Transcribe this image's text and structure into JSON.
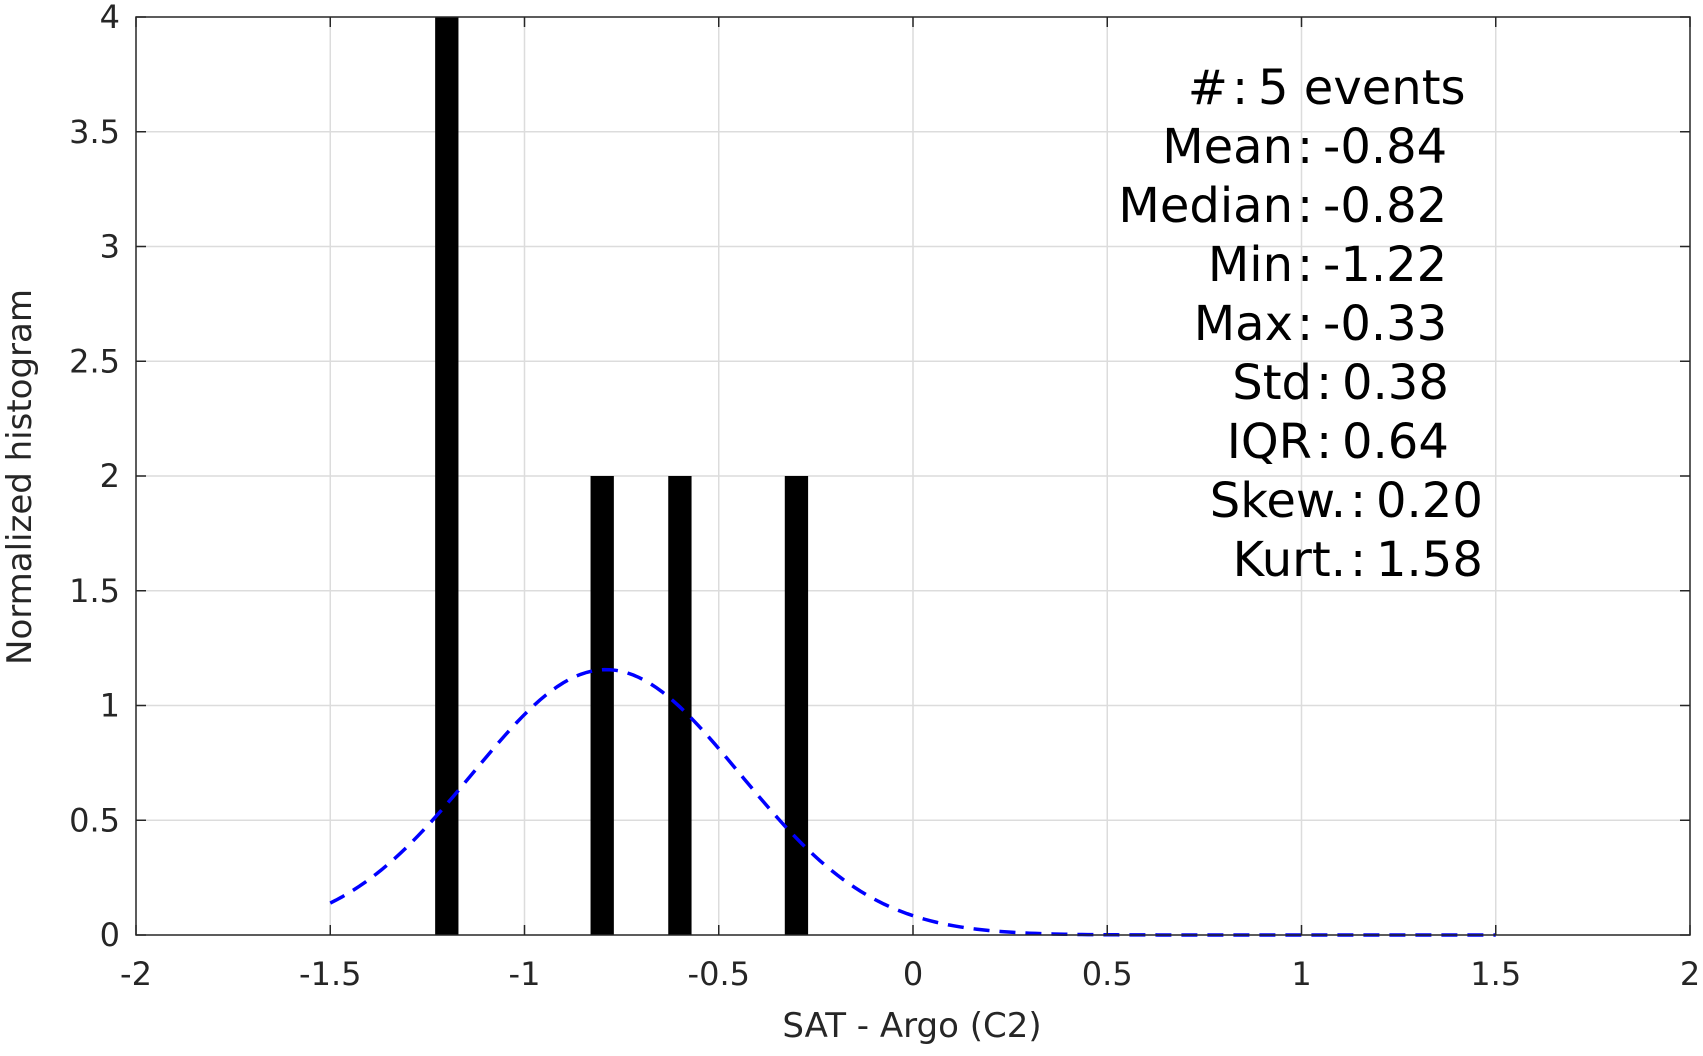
{
  "chart_data": {
    "type": "bar",
    "xlabel": "SAT - Argo (C2)",
    "ylabel": "Normalized histogram",
    "xlim": [
      -2,
      2
    ],
    "ylim": [
      0,
      4
    ],
    "xticks": [
      -2,
      -1.5,
      -1,
      -0.5,
      0,
      0.5,
      1,
      1.5,
      2
    ],
    "xtick_labels": [
      "-2",
      "-1.5",
      "-1",
      "-0.5",
      "0",
      "0.5",
      "1",
      "1.5",
      "2"
    ],
    "yticks": [
      0,
      0.5,
      1,
      1.5,
      2,
      2.5,
      3,
      3.5,
      4
    ],
    "ytick_labels": [
      "0",
      "0.5",
      "1",
      "1.5",
      "2",
      "2.5",
      "3",
      "3.5",
      "4"
    ],
    "grid": true,
    "bar_width": 0.06,
    "bars": [
      {
        "x": -1.2,
        "value": 4
      },
      {
        "x": -0.8,
        "value": 2
      },
      {
        "x": -0.6,
        "value": 2
      },
      {
        "x": -0.3,
        "value": 2
      }
    ],
    "fit_curve": {
      "style": "dashed",
      "mean": -0.79,
      "std": 0.345,
      "x_range": [
        -1.5,
        1.5
      ]
    },
    "colors": {
      "bars": "#000000",
      "fit_curve": "#0000ff",
      "grid": "#dcdcdc",
      "axes": "#262626"
    },
    "annotations": [
      {
        "label": "#  ",
        "sep": ":",
        "value": "5 events"
      },
      {
        "label": "Mean ",
        "sep": ":",
        "value": "-0.84"
      },
      {
        "label": "Median ",
        "sep": ":",
        "value": "-0.82"
      },
      {
        "label": "Min ",
        "sep": ":",
        "value": "-1.22"
      },
      {
        "label": "Max ",
        "sep": ":",
        "value": "-0.33"
      },
      {
        "label": "Std ",
        "sep": ":",
        "value": "0.38"
      },
      {
        "label": "IQR ",
        "sep": ":",
        "value": "0.64"
      },
      {
        "label": "Skew. ",
        "sep": ":",
        "value": "0.20"
      },
      {
        "label": "Kurt. ",
        "sep": ":",
        "value": "1.58"
      }
    ]
  }
}
